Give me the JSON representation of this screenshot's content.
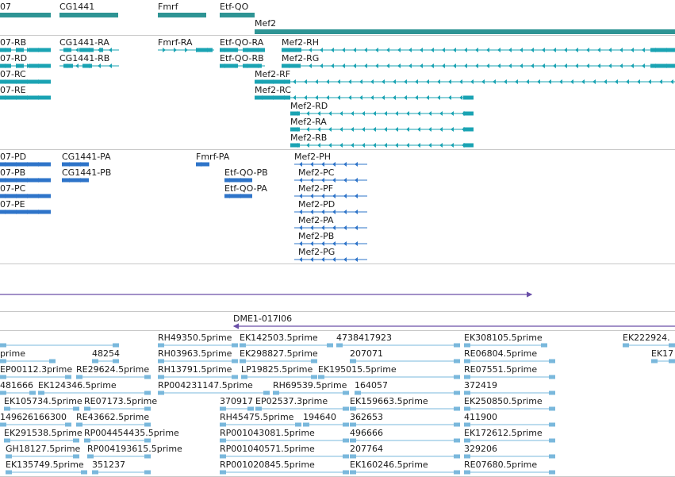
{
  "tracks": {
    "gene": {
      "labels": [
        "07",
        "CG1441",
        "Fmrf",
        "Etf-QO",
        "Mef2"
      ]
    },
    "transcript": {
      "labels": [
        "07-RB",
        "07-RD",
        "07-RC",
        "07-RE",
        "CG1441-RA",
        "CG1441-RB",
        "Fmrf-RA",
        "Etf-QO-RA",
        "Etf-QO-RB",
        "Mef2-RH",
        "Mef2-RG",
        "Mef2-RF",
        "Mef2-RC",
        "Mef2-RD",
        "Mef2-RA",
        "Mef2-RB"
      ]
    },
    "protein": {
      "labels": [
        "07-PD",
        "07-PB",
        "07-PC",
        "07-PE",
        "CG1441-PA",
        "CG1441-PB",
        "Fmrf-PA",
        "Etf-QO-PB",
        "Etf-QO-PA",
        "Mef2-PH",
        "Mef2-PC",
        "Mef2-PF",
        "Mef2-PD",
        "Mef2-PA",
        "Mef2-PB",
        "Mef2-PG"
      ]
    },
    "clone": {
      "label": "DME1-017I06"
    },
    "est": {
      "labels": [
        "RH49350.5prime",
        "EK142503.5prime",
        "4738417923",
        "EK308105.5prime",
        "EK222924.",
        "prime",
        "48254",
        "RH03963.5prime",
        "EK298827.5prime",
        "207071",
        "RE06804.5prime",
        "EK17",
        "EP00112.3prime",
        "RE29624.5prime",
        "RH13791.5prime",
        "LP19825.5prime",
        "EK195015.5prime",
        "RE07551.5prime",
        "481666",
        "EK124346.5prime",
        "RP004231147.5prime",
        "RH69539.5prime",
        "164057",
        "372419",
        "EK105734.5prime",
        "RE07173.5prime",
        "370917",
        "EP02537.3prime",
        "EK159663.5prime",
        "EK250850.5prime",
        "149626166300",
        "RE43662.5prime",
        "RH45475.5prime",
        "194640",
        "362653",
        "411900",
        "EK291538.5prime",
        "RP004454435.5prime",
        "RP001043081.5prime",
        "496666",
        "EK172612.5prime",
        "GH18127.5prime",
        "RP004193615.5prime",
        "RP001040571.5prime",
        "207764",
        "329206",
        "EK135749.5prime",
        "351237",
        "RP001020845.5prime",
        "EK160246.5prime",
        "RE07680.5prime"
      ]
    }
  },
  "colors": {
    "gene": "#2e9494",
    "transcript": "#1aa3b3",
    "protein": "#2e74c9",
    "clone": "#6a4fa8",
    "est": "#7ab8dc",
    "separator": "#c8c8c8"
  }
}
